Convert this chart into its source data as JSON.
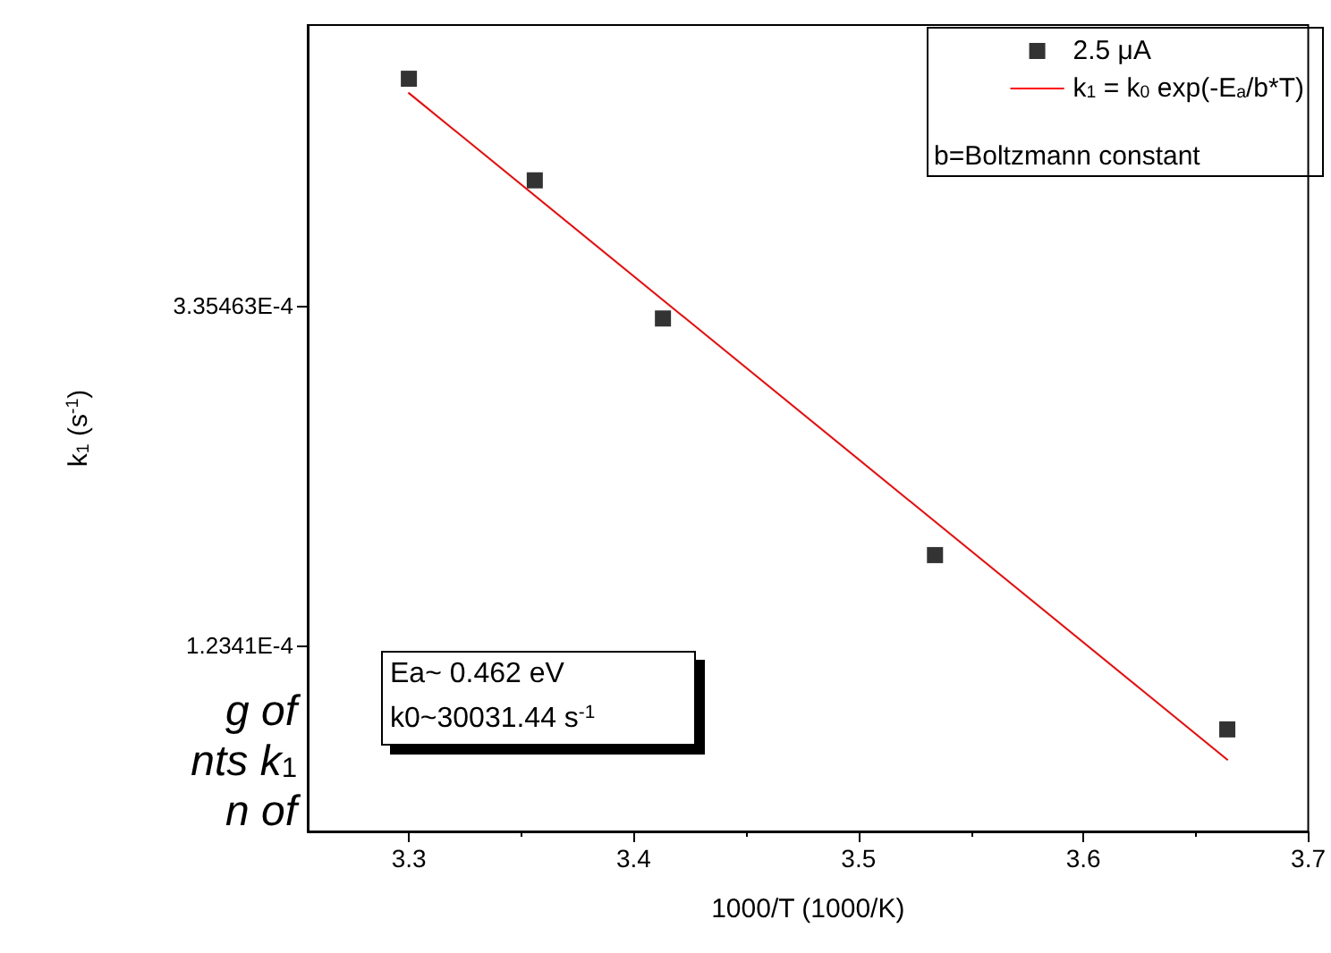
{
  "chart_data": {
    "type": "scatter",
    "xlabel": "1000/T (1000/K)",
    "ylabel": "k$_{1}$ (s$^{-1}$)",
    "log": "y",
    "xlim": [
      3.255,
      3.7
    ],
    "xticks": [
      3.3,
      3.4,
      3.5,
      3.6,
      3.7
    ],
    "ylim": [
      7.14e-05,
      0.000766
    ],
    "yticks": [
      {
        "value": 0.000335463,
        "label": "3.35463E-4"
      },
      {
        "value": 0.00012341,
        "label": "1.2341E-4"
      }
    ],
    "grid": false,
    "legend": "top right",
    "series": [
      {
        "name": "2.5 μA",
        "type": "scatter",
        "marker": "square",
        "color": "#000000",
        "x": [
          3.3,
          3.356,
          3.413,
          3.534,
          3.664
        ],
        "values": [
          0.000654,
          0.000485,
          0.000323,
          0.000161,
          9.64e-05
        ]
      },
      {
        "name": "k$_{1}$ = k$_{0}$ exp(-E$_{a}$/b*T)",
        "type": "line",
        "marker": "none",
        "line_style": "solid",
        "color": "#ff0000",
        "x": [
          3.3,
          3.664
        ],
        "values": [
          0.000627,
          8.82e-05
        ]
      }
    ],
    "annotations": [
      "b=Boltzmann constant",
      "Ea~ 0.462 eV",
      "k0~30031.44 s$^{-1}$",
      "g of",
      "nts k$_{1}$",
      "n of"
    ]
  }
}
